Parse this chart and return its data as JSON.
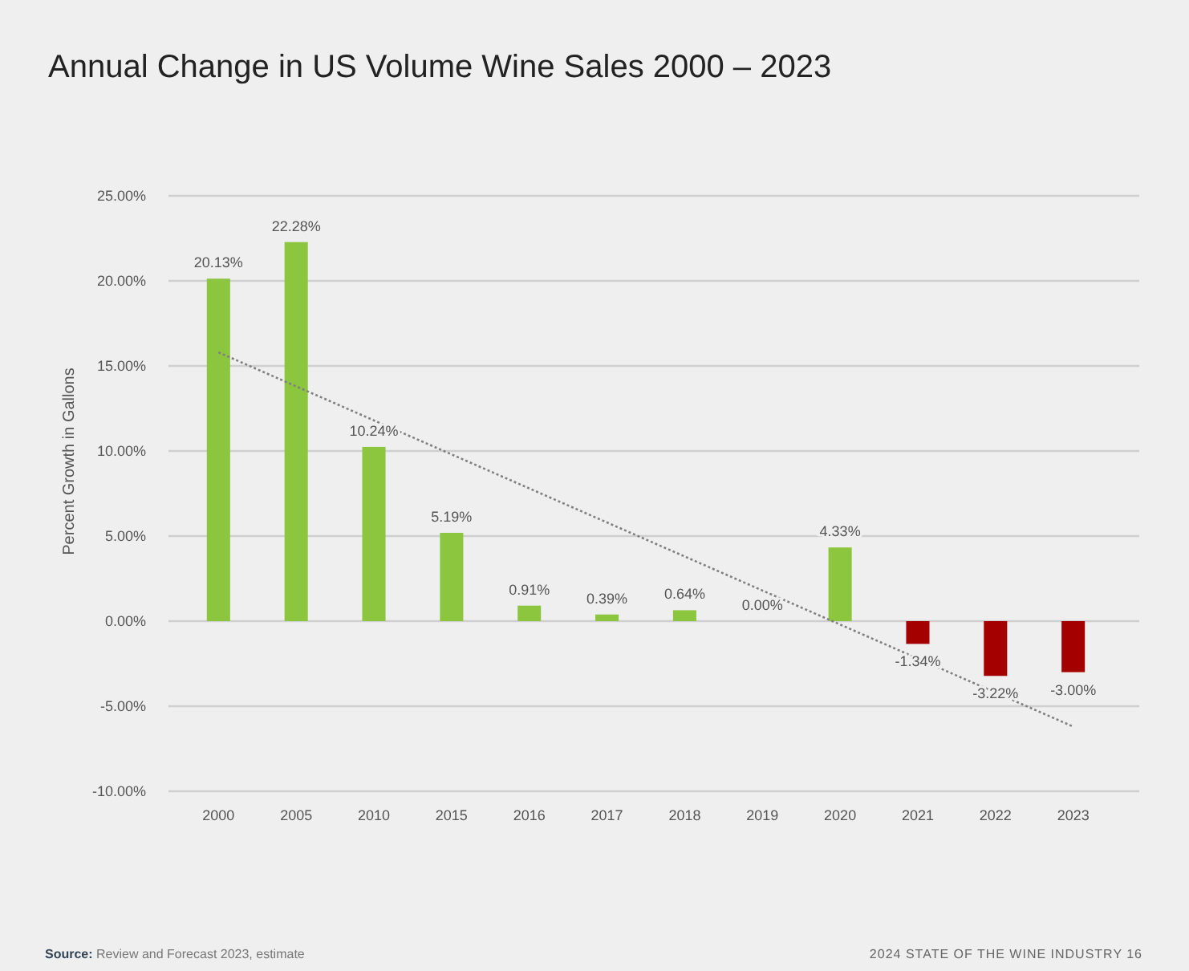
{
  "chart_data": {
    "type": "bar",
    "title": "Annual Change in US Volume Wine Sales 2000 – 2023",
    "ylabel": "Percent Growth in Gallons",
    "categories": [
      "2000",
      "2005",
      "2010",
      "2015",
      "2016",
      "2017",
      "2018",
      "2019",
      "2020",
      "2021",
      "2022",
      "2023"
    ],
    "series": [
      {
        "values": [
          20.13,
          22.28,
          10.24,
          5.19,
          0.91,
          0.39,
          0.64,
          0.0,
          4.33,
          -1.34,
          -3.22,
          -3.0
        ],
        "colors": [
          "#8cc63f",
          "#8cc63f",
          "#8cc63f",
          "#8cc63f",
          "#8cc63f",
          "#8cc63f",
          "#8cc63f",
          "#8cc63f",
          "#8cc63f",
          "#a50000",
          "#a50000",
          "#a50000"
        ],
        "value_labels": [
          "20.13%",
          "22.28%",
          "10.24%",
          "5.19%",
          "0.91%",
          "0.39%",
          "0.64%",
          "0.00%",
          "4.33%",
          "-1.34%",
          "-3.22%",
          "-3.00%"
        ]
      },
      {
        "type": "line",
        "values": [
          15.8,
          13.8,
          11.8,
          9.8,
          7.8,
          5.8,
          3.8,
          1.8,
          -0.2,
          -2.2,
          -4.2,
          -6.2
        ],
        "color": "#808080",
        "line_style": "dotted",
        "marker": "none"
      }
    ],
    "ylim": [
      -10,
      25
    ],
    "yticks": [
      {
        "value": -10,
        "label": "-10.00%"
      },
      {
        "value": -5,
        "label": "-5.00%"
      },
      {
        "value": 0,
        "label": "0.00%"
      },
      {
        "value": 5,
        "label": "5.00%"
      },
      {
        "value": 10,
        "label": "10.00%"
      },
      {
        "value": 15,
        "label": "15.00%"
      },
      {
        "value": 20,
        "label": "20.00%"
      },
      {
        "value": 25,
        "label": "25.00%"
      }
    ],
    "grid": "y",
    "annotations": [
      "Source: Review and Forecast 2023, estimate",
      "2024 STATE OF THE WINE INDUSTRY",
      "16"
    ]
  }
}
